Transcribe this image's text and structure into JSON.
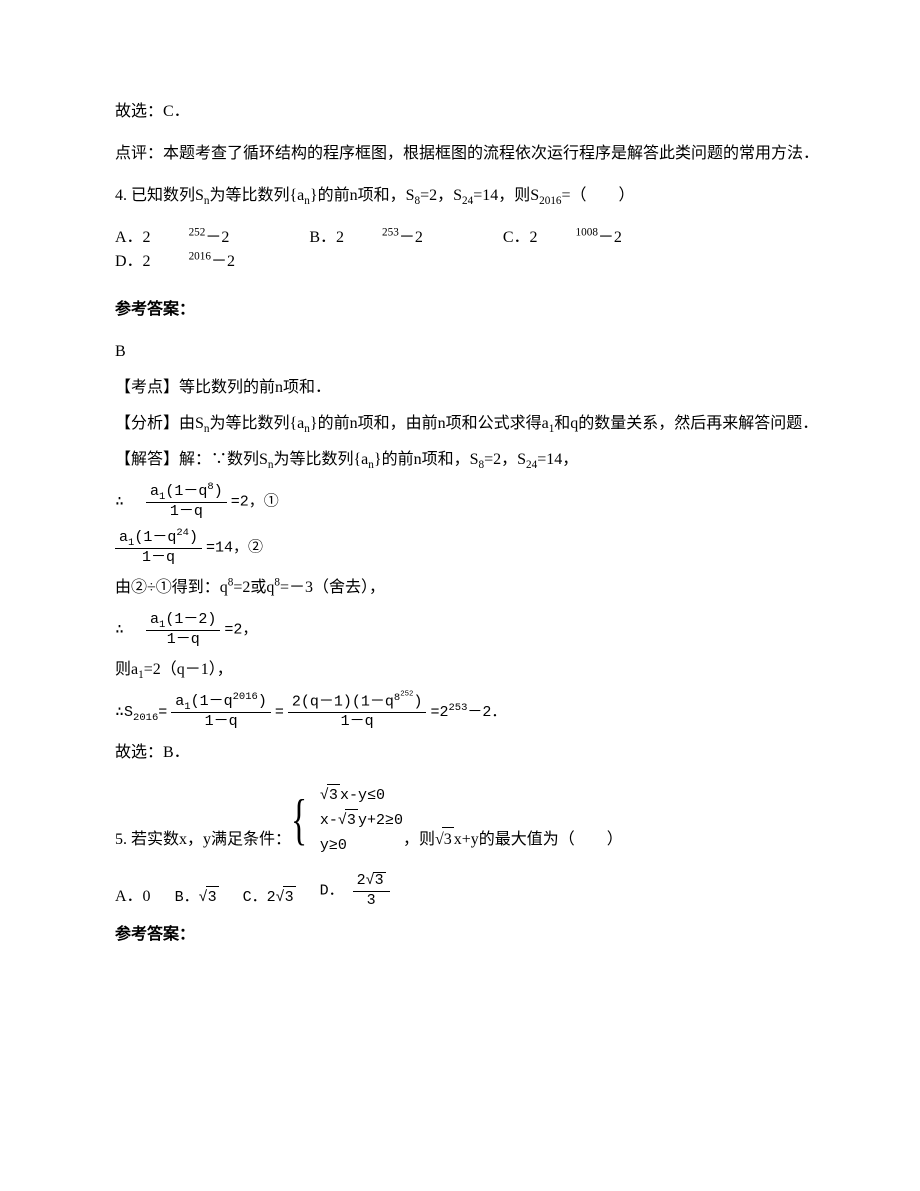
{
  "p1": "故选：C．",
  "p2": "点评：本题考查了循环结构的程序框图，根据框图的流程依次运行程序是解答此类问题的常用方法．",
  "q4": {
    "stem_a": "4. 已知数列S",
    "stem_b": "为等比数列{a",
    "stem_c": "}的前n项和，S",
    "stem_d": "=2，S",
    "stem_e": "=14，则S",
    "stem_f": "=（　　）",
    "sub_n": "n",
    "sub_8": "8",
    "sub_24": "24",
    "sub_2016": "2016",
    "optA_pre": "A．2",
    "optA_exp": "252",
    "optA_suf": "－2",
    "optB_pre": "B．2",
    "optB_exp": "253",
    "optB_suf": "－2",
    "optC_pre": "C．2",
    "optC_exp": "1008",
    "optC_suf": "－2",
    "optD_pre": "D．2",
    "optD_exp": "2016",
    "optD_suf": "－2"
  },
  "ref_label": "参考答案：",
  "q4ans": {
    "letter": "B",
    "kd": "【考点】等比数列的前n项和．",
    "fx_a": "【分析】由S",
    "fx_b": "为等比数列{a",
    "fx_c": "}的前n项和，由前n项和公式求得a",
    "fx_d": "和q的数量关系，然后再来解答问题．",
    "sub_1": "1",
    "jd_a": "【解答】解：∵数列S",
    "jd_b": "为等比数列{a",
    "jd_c": "}的前n项和，S",
    "jd_d": "=2，S",
    "jd_e": "=14，",
    "eq1_pre": "∴",
    "eq1_num_a": "a",
    "eq1_num_b": "(1－q",
    "eq1_num_exp": "8",
    "eq1_num_c": ")",
    "eq1_den": "1－q",
    "eq1_suf": "=2，①",
    "eq2_num_exp": "24",
    "eq2_suf": "=14，②",
    "divline_a": "由②÷①得到：q",
    "divline_b": "=2或q",
    "divline_c": "=－3（舍去），",
    "div_exp": "8",
    "eq3_num": "a₁(1－2)",
    "eq3_num_a": "a",
    "eq3_num_b": "(1－2)",
    "eq3_suf": "=2，",
    "a1line_a": "则a",
    "a1line_b": "=2（q－1），",
    "s2016_pre": "∴S",
    "s2016_exp": "2016",
    "s2016_eq": "=",
    "s2016_f1_num_a": "a",
    "s2016_f1_num_b": "(1－q",
    "s2016_f1_num_exp": "2016",
    "s2016_f1_num_c": ")",
    "s2016_f1_den": "1－q",
    "s2016_f2_num_a": "2(q－1)(1－q",
    "s2016_f2_num_exp1": "8",
    "s2016_f2_num_exp2": "252",
    "s2016_f2_num_b": ")",
    "s2016_f2_den": "1－q",
    "s2016_res_a": "=2",
    "s2016_res_exp": "253",
    "s2016_res_b": "－2．",
    "final": "故选：B．"
  },
  "q5": {
    "lead": "5. 若实数x，y满足条件：",
    "sys1_a": "√",
    "sys1_b": "3",
    "sys1_c": "x-y≤0",
    "sys2_a": "x-√",
    "sys2_b": "3",
    "sys2_c": "y+2≥0",
    "sys3": "y≥0",
    "tail_a": "，则√",
    "tail_b": "3",
    "tail_c": "x+y的最大值为（　　）",
    "optA": "A．0",
    "optB_a": "B．√",
    "optB_b": "3",
    "optC_a": "C．2√",
    "optC_b": "3",
    "optD_a": "D．",
    "optD_num_a": "2√",
    "optD_num_b": "3",
    "optD_den": "3"
  }
}
